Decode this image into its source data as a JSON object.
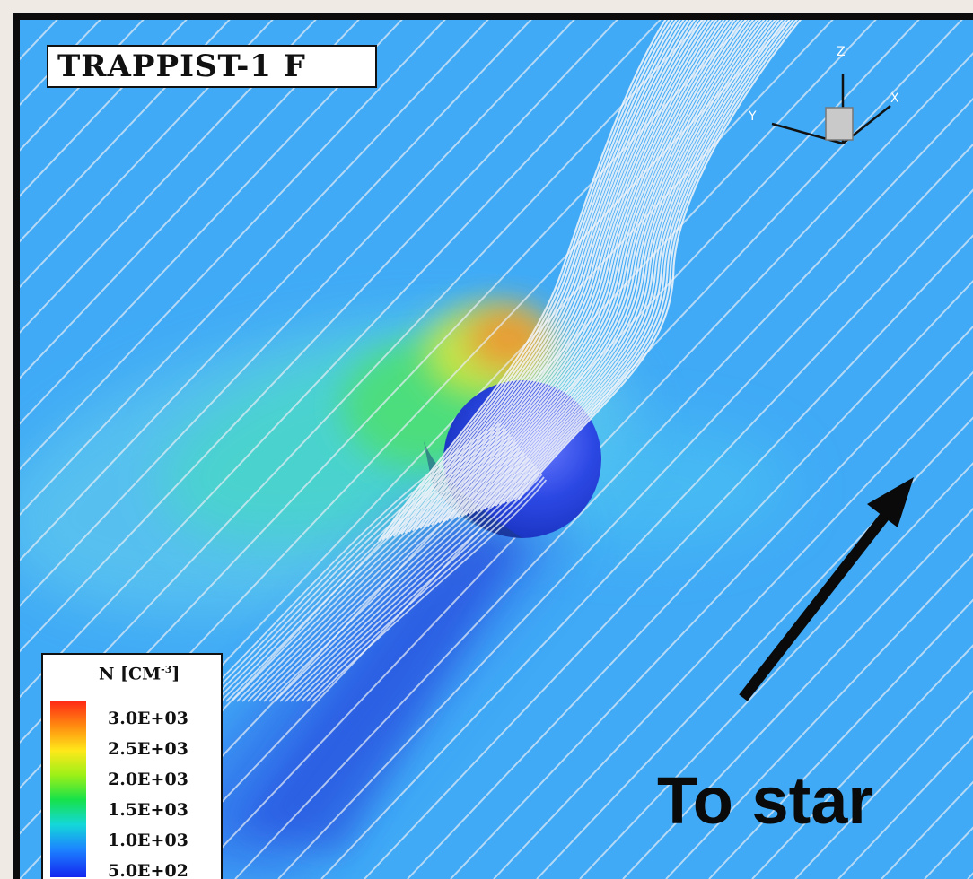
{
  "title": "TRAPPIST-1 F",
  "legend": {
    "title_main": "N [CM",
    "title_sup": "-3",
    "title_end": "]",
    "labels": [
      "3.0E+03",
      "2.5E+03",
      "2.0E+03",
      "1.5E+03",
      "1.0E+03",
      "5.0E+02"
    ]
  },
  "arrow_label": "To star",
  "axes": {
    "x": "X",
    "y": "Y",
    "z": "Z"
  },
  "colors": {
    "background_field": "#40aaf6",
    "planet": "#1f3fd6",
    "streamlines": "#f2f4f8",
    "arrow": "#0a0a0a"
  }
}
